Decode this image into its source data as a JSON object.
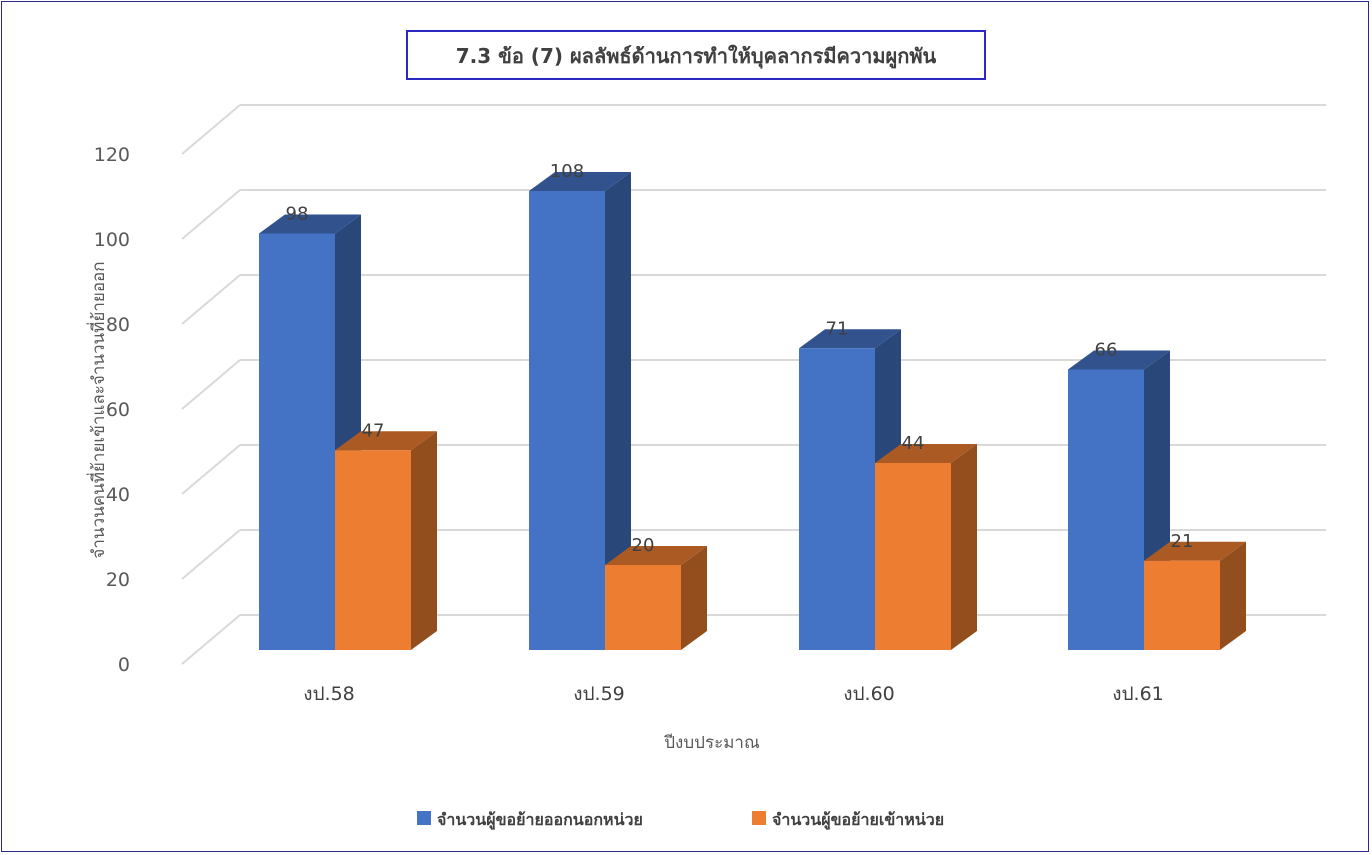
{
  "chart_data": {
    "type": "bar",
    "title": "7.3 ข้อ (7) ผลลัพธ์ด้านการทำให้บุคลากรมีความผูกพัน",
    "xlabel": "ปีงบประมาณ",
    "ylabel": "จำนวนคนที่ย้ายเข้าและจำนวนที่ย้ายออก",
    "categories": [
      "งป.58",
      "งป.59",
      "งป.60",
      "งป.61"
    ],
    "y_ticks": [
      "0",
      "20",
      "40",
      "60",
      "80",
      "100",
      "120"
    ],
    "ylim": [
      0,
      120
    ],
    "grid": true,
    "legend_position": "bottom",
    "style": "3d-clustered-column",
    "series": [
      {
        "name": "จำนวนผู้ขอย้ายออกนอกหน่วย",
        "values": [
          98,
          108,
          71,
          66
        ],
        "labels": [
          "98",
          "108",
          "71",
          "66"
        ],
        "color": "#4472C4"
      },
      {
        "name": "จำนวนผู้ขอย้ายเข้าหน่วย",
        "values": [
          47,
          20,
          44,
          21
        ],
        "labels": [
          "47",
          "20",
          "44",
          "21"
        ],
        "color": "#ED7D31"
      }
    ]
  }
}
